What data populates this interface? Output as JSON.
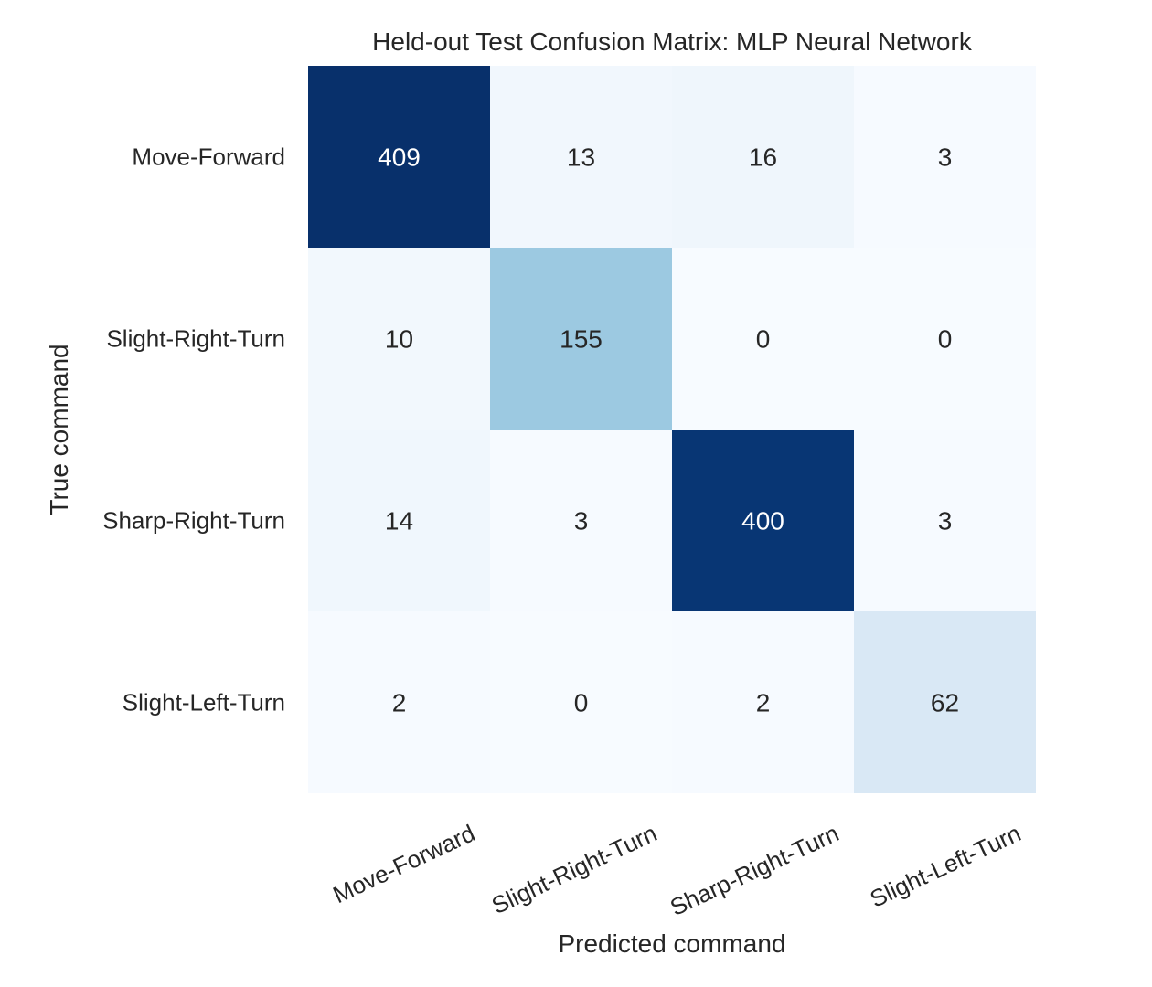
{
  "chart_data": {
    "type": "heatmap",
    "title": "Held-out Test Confusion Matrix: MLP Neural Network",
    "xlabel": "Predicted command",
    "ylabel": "True command",
    "x_categories": [
      "Move-Forward",
      "Slight-Right-Turn",
      "Sharp-Right-Turn",
      "Slight-Left-Turn"
    ],
    "y_categories": [
      "Move-Forward",
      "Slight-Right-Turn",
      "Sharp-Right-Turn",
      "Slight-Left-Turn"
    ],
    "values": [
      [
        409,
        13,
        16,
        3
      ],
      [
        10,
        155,
        0,
        0
      ],
      [
        14,
        3,
        400,
        3
      ],
      [
        2,
        0,
        2,
        62
      ]
    ],
    "colormap": "Blues",
    "colorbar": false,
    "colors": {
      "low": "#f7fbff",
      "high": "#08306b",
      "text_dark": "#262626",
      "text_light": "#ffffff"
    }
  }
}
